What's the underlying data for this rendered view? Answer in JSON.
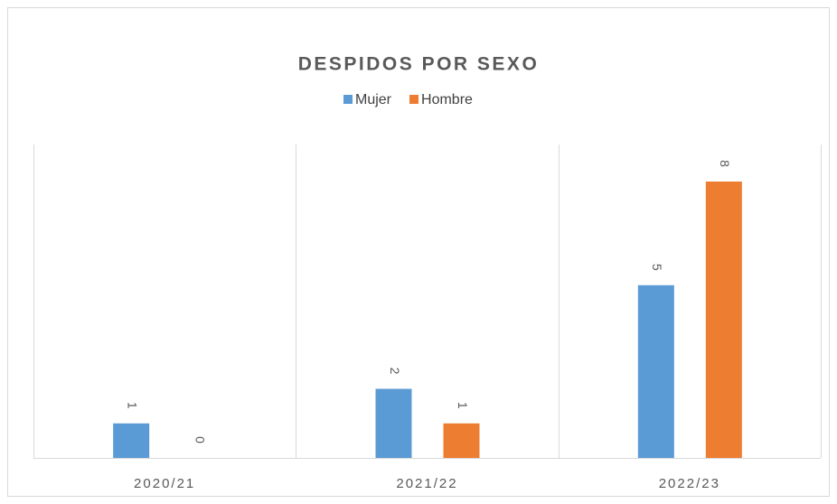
{
  "chart_data": {
    "type": "bar",
    "title": "DESPIDOS POR SEXO",
    "categories": [
      "2020/21",
      "2021/22",
      "2022/23"
    ],
    "series": [
      {
        "name": "Mujer",
        "color": "#5b9bd5",
        "values": [
          1,
          2,
          5
        ]
      },
      {
        "name": "Hombre",
        "color": "#ed7d31",
        "values": [
          0,
          1,
          8
        ]
      }
    ],
    "legend": "top"
  }
}
